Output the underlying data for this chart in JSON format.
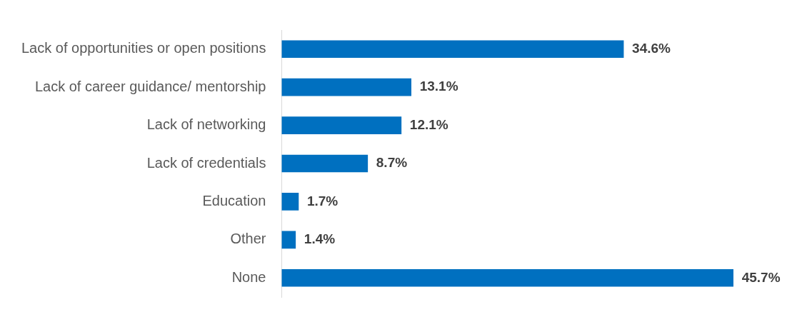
{
  "chart_data": {
    "type": "bar",
    "orientation": "horizontal",
    "categories": [
      "Lack of opportunities or open positions",
      "Lack of career guidance/ mentorship",
      "Lack of networking",
      "Lack of credentials",
      "Education",
      "Other",
      "None"
    ],
    "values": [
      34.6,
      13.1,
      12.1,
      8.7,
      1.7,
      1.4,
      45.7
    ],
    "value_labels": [
      "34.6%",
      "13.1%",
      "12.1%",
      "8.7%",
      "1.7%",
      "1.4%",
      "45.7%"
    ],
    "color": "#0070c0",
    "tick_labels": "y",
    "grid": false,
    "legend": false
  }
}
